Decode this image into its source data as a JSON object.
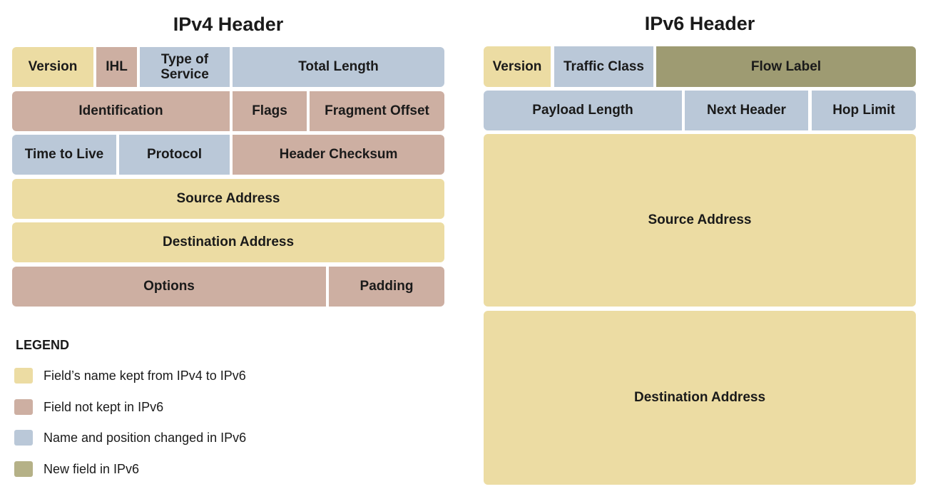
{
  "ipv4": {
    "title": "IPv4 Header",
    "fields": {
      "version": "Version",
      "ihl": "IHL",
      "tos": "Type of\nService",
      "total_length": "Total Length",
      "identification": "Identification",
      "flags": "Flags",
      "fragment_offset": "Fragment Offset",
      "ttl": "Time to Live",
      "protocol": "Protocol",
      "header_checksum": "Header Checksum",
      "source_address": "Source Address",
      "destination_address": "Destination Address",
      "options": "Options",
      "padding": "Padding"
    }
  },
  "ipv6": {
    "title": "IPv6 Header",
    "fields": {
      "version": "Version",
      "traffic_class": "Traffic Class",
      "flow_label": "Flow Label",
      "payload_length": "Payload Length",
      "next_header": "Next Header",
      "hop_limit": "Hop Limit",
      "source_address": "Source Address",
      "destination_address": "Destination Address"
    }
  },
  "legend": {
    "title": "LEGEND",
    "items": [
      {
        "label": "Field’s name kept from IPv4 to IPv6",
        "color": "#ecdca3"
      },
      {
        "label": "Field not kept in IPv6",
        "color": "#cdafa2"
      },
      {
        "label": "Name and position changed in IPv6",
        "color": "#bac8d8"
      },
      {
        "label": "New field in IPv6",
        "color": "#9e9b72"
      }
    ]
  },
  "colors": {
    "kept": "#ecdca3",
    "not_kept": "#cdafa2",
    "changed": "#bac8d8",
    "new": "#9e9b72"
  }
}
